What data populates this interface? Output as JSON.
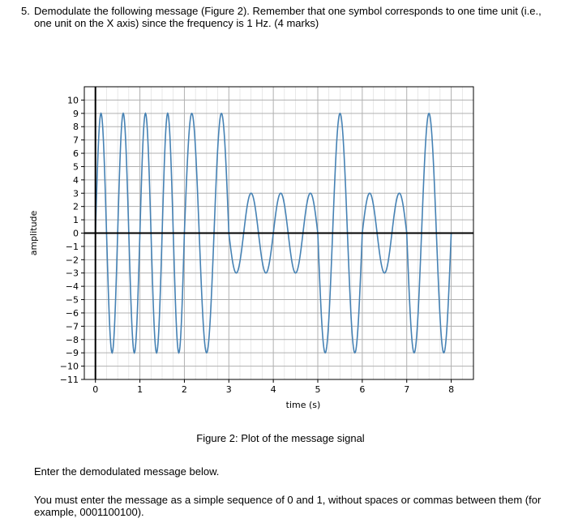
{
  "question": {
    "number": "5.",
    "text": "Demodulate the following message (Figure 2). Remember that one symbol corresponds to one time unit (i.e., one unit on the X axis) since the frequency is 1 Hz. (4 marks)"
  },
  "figure": {
    "caption": "Figure 2: Plot of the message signal"
  },
  "chart_data": {
    "type": "line",
    "xlabel": "time (s)",
    "ylabel": "amplitude",
    "xlim": [
      -0.25,
      8.5
    ],
    "ylim": [
      -11,
      11
    ],
    "xticks": [
      "0",
      "1",
      "2",
      "3",
      "4",
      "5",
      "6",
      "7",
      "8"
    ],
    "yticks": [
      "10",
      "9",
      "8",
      "7",
      "6",
      "5",
      "4",
      "3",
      "2",
      "1",
      "0",
      "−1",
      "−2",
      "−3",
      "−4",
      "−5",
      "−6",
      "−7",
      "−8",
      "−9",
      "−10",
      "−11"
    ],
    "grid": true,
    "line_color": "#4682b4",
    "segments": [
      {
        "t_start": 0,
        "t_end": 1,
        "amplitude": 9,
        "frequency": 2
      },
      {
        "t_start": 1,
        "t_end": 2,
        "amplitude": 9,
        "frequency": 2
      },
      {
        "t_start": 2,
        "t_end": 3,
        "amplitude": 9,
        "frequency": 1.5
      },
      {
        "t_start": 3,
        "t_end": 4,
        "amplitude": 3,
        "frequency": 1.5
      },
      {
        "t_start": 4,
        "t_end": 5,
        "amplitude": 3,
        "frequency": 1.5
      },
      {
        "t_start": 5,
        "t_end": 6,
        "amplitude": 9,
        "frequency": 1.5
      },
      {
        "t_start": 6,
        "t_end": 7,
        "amplitude": 3,
        "frequency": 1.5
      },
      {
        "t_start": 7,
        "t_end": 8,
        "amplitude": 9,
        "frequency": 1.5
      }
    ]
  },
  "answer_prompt": "Enter the demodulated message below.",
  "instructions": "You must enter the message as a simple sequence of 0 and 1, without spaces or commas between them (for example, 0001100100)."
}
